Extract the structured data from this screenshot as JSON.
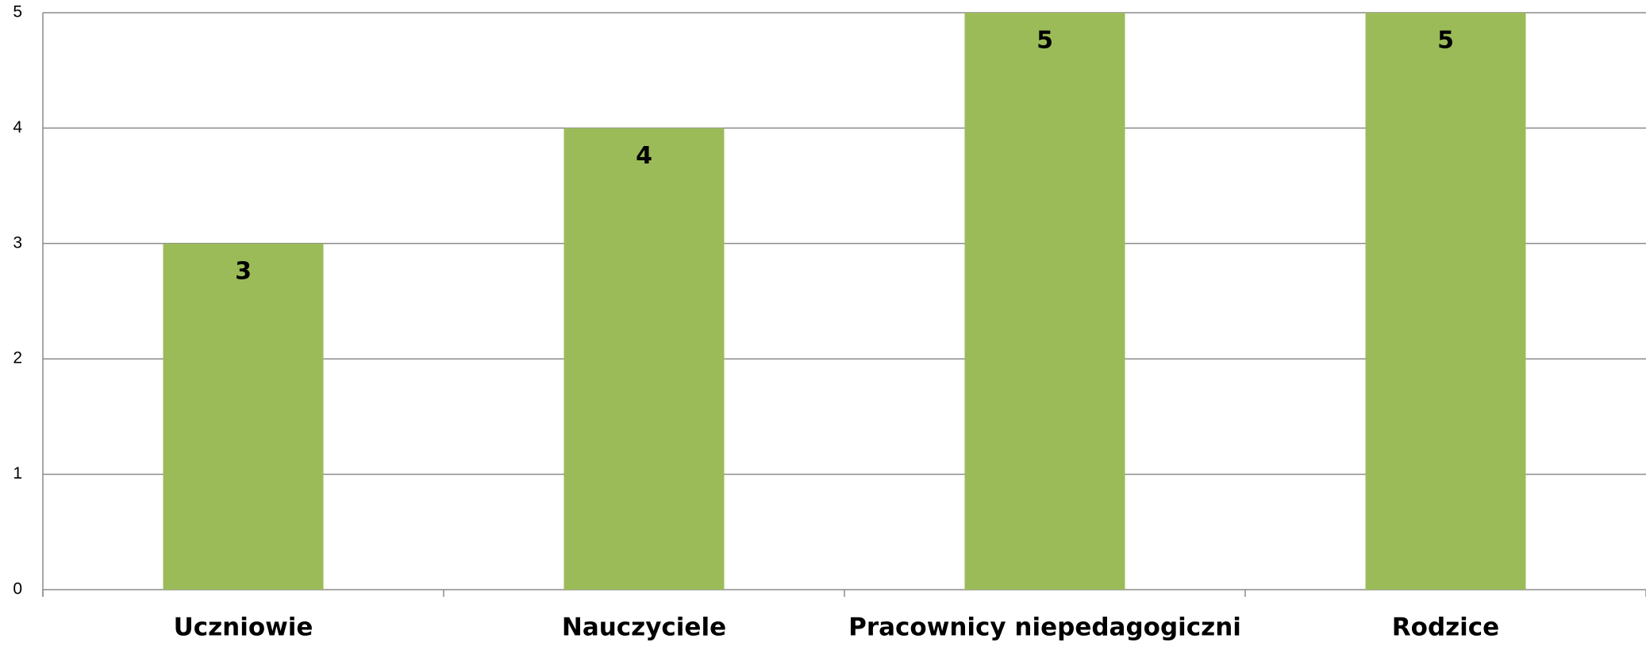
{
  "chart_data": {
    "type": "bar",
    "categories": [
      "Uczniowie",
      "Nauczyciele",
      "Pracownicy niepedagogiczni",
      "Rodzice"
    ],
    "values": [
      3,
      4,
      5,
      5
    ],
    "color": "#9bbb59",
    "ylim": [
      0,
      5
    ],
    "yticks": [
      0,
      1,
      2,
      3,
      4,
      5
    ],
    "grid": true,
    "data_labels": true
  }
}
